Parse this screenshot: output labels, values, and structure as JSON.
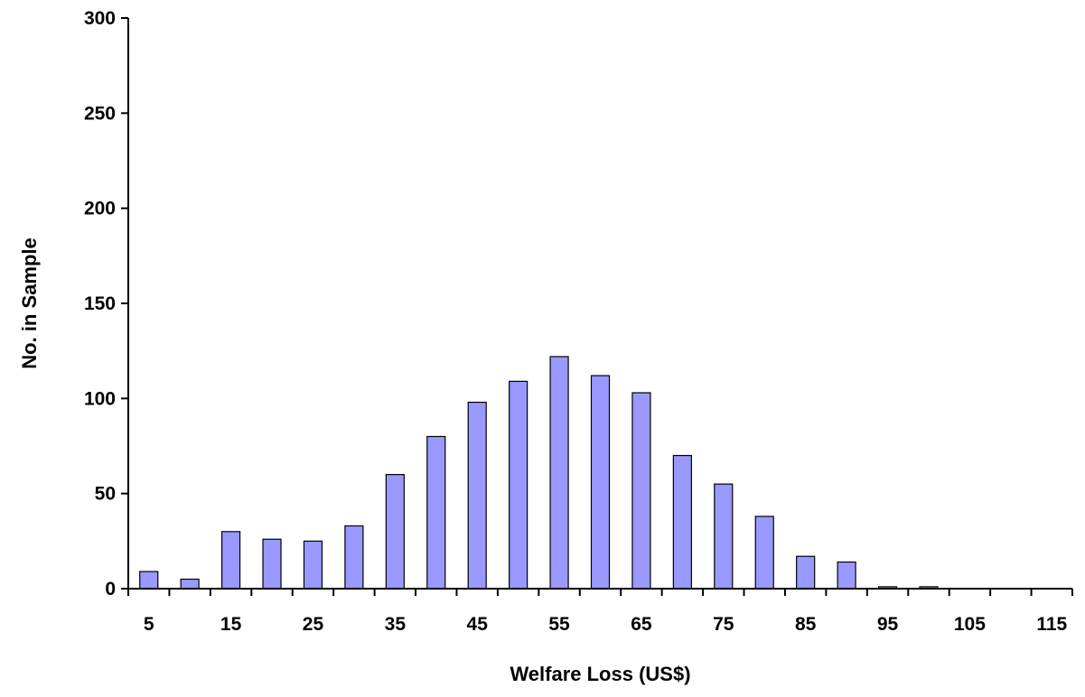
{
  "chart_data": {
    "type": "bar",
    "xlabel": "Welfare Loss (US$)",
    "ylabel": "No. in Sample",
    "categories": [
      "5",
      "10",
      "15",
      "20",
      "25",
      "30",
      "35",
      "40",
      "45",
      "50",
      "55",
      "60",
      "65",
      "70",
      "75",
      "80",
      "85",
      "90",
      "95",
      "100",
      "105",
      "110",
      "115"
    ],
    "x_tick_labels": [
      "5",
      "15",
      "25",
      "35",
      "45",
      "55",
      "65",
      "75",
      "85",
      "95",
      "105",
      "115"
    ],
    "values": [
      9,
      5,
      30,
      26,
      25,
      33,
      60,
      80,
      98,
      109,
      122,
      112,
      103,
      70,
      55,
      38,
      17,
      14,
      1,
      1,
      0,
      0,
      0
    ],
    "ylim": [
      0,
      300
    ],
    "y_ticks": [
      0,
      50,
      100,
      150,
      200,
      250,
      300
    ],
    "grid": false,
    "legend": "none",
    "colors": {
      "bar_fill": "#9999FF",
      "bar_stroke": "#000000",
      "axis": "#000000",
      "background": "#FFFFFF"
    }
  }
}
